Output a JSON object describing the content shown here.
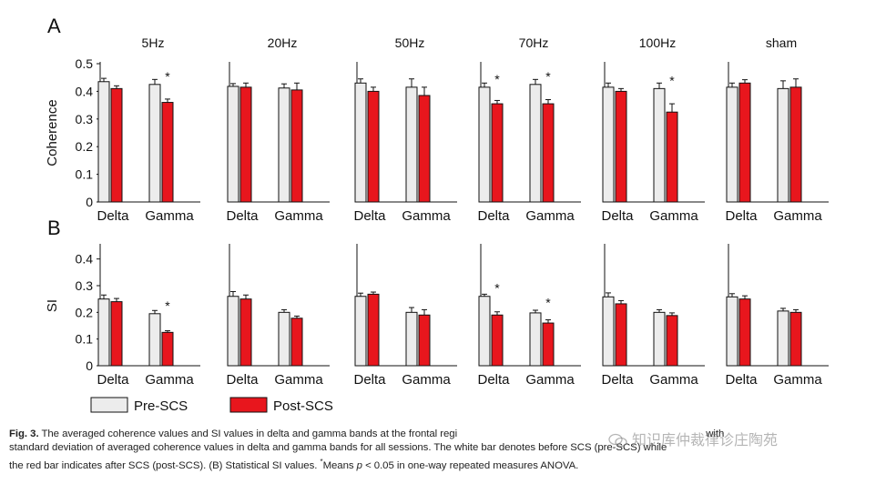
{
  "panel_letters": [
    "A",
    "B"
  ],
  "legend": {
    "pre": "Pre-SCS",
    "post": "Post-SCS"
  },
  "colors": {
    "pre": "#ececec",
    "post": "#e8161d",
    "axis": "#111111"
  },
  "chart_data": [
    {
      "type": "bar",
      "panel": "A",
      "ylabel": "Coherence",
      "ylim": [
        0,
        0.5
      ],
      "yticks": [
        "0",
        "0.1",
        "0.2",
        "0.3",
        "0.4",
        "0.5"
      ],
      "categories": [
        "Delta",
        "Gamma"
      ],
      "groups": [
        {
          "title": "5Hz",
          "pre": [
            0.435,
            0.425
          ],
          "pre_err": [
            0.012,
            0.018
          ],
          "post": [
            0.41,
            0.36
          ],
          "post_err": [
            0.01,
            0.012
          ],
          "sig": [
            false,
            true
          ]
        },
        {
          "title": "20Hz",
          "pre": [
            0.418,
            0.412
          ],
          "pre_err": [
            0.01,
            0.015
          ],
          "post": [
            0.415,
            0.405
          ],
          "post_err": [
            0.015,
            0.025
          ],
          "sig": [
            false,
            false
          ]
        },
        {
          "title": "50Hz",
          "pre": [
            0.43,
            0.415
          ],
          "pre_err": [
            0.015,
            0.03
          ],
          "post": [
            0.4,
            0.385
          ],
          "post_err": [
            0.015,
            0.03
          ],
          "sig": [
            false,
            false
          ]
        },
        {
          "title": "70Hz",
          "pre": [
            0.415,
            0.425
          ],
          "pre_err": [
            0.015,
            0.018
          ],
          "post": [
            0.355,
            0.355
          ],
          "post_err": [
            0.012,
            0.015
          ],
          "sig": [
            true,
            true
          ]
        },
        {
          "title": "100Hz",
          "pre": [
            0.415,
            0.41
          ],
          "pre_err": [
            0.015,
            0.02
          ],
          "post": [
            0.4,
            0.325
          ],
          "post_err": [
            0.01,
            0.03
          ],
          "sig": [
            false,
            true
          ]
        },
        {
          "title": "sham",
          "pre": [
            0.415,
            0.41
          ],
          "pre_err": [
            0.015,
            0.028
          ],
          "post": [
            0.43,
            0.415
          ],
          "post_err": [
            0.012,
            0.03
          ],
          "sig": [
            false,
            false
          ]
        }
      ]
    },
    {
      "type": "bar",
      "panel": "B",
      "ylabel": "SI",
      "ylim": [
        0,
        0.45
      ],
      "yticks": [
        "0",
        "0.1",
        "0.2",
        "0.3",
        "0.4"
      ],
      "categories": [
        "Delta",
        "Gamma"
      ],
      "groups": [
        {
          "title": "",
          "pre": [
            0.25,
            0.195
          ],
          "pre_err": [
            0.015,
            0.012
          ],
          "post": [
            0.24,
            0.125
          ],
          "post_err": [
            0.012,
            0.006
          ],
          "sig": [
            false,
            true
          ]
        },
        {
          "title": "",
          "pre": [
            0.26,
            0.2
          ],
          "pre_err": [
            0.018,
            0.01
          ],
          "post": [
            0.25,
            0.178
          ],
          "post_err": [
            0.015,
            0.008
          ],
          "sig": [
            false,
            false
          ]
        },
        {
          "title": "",
          "pre": [
            0.26,
            0.2
          ],
          "pre_err": [
            0.012,
            0.018
          ],
          "post": [
            0.268,
            0.19
          ],
          "post_err": [
            0.008,
            0.02
          ],
          "sig": [
            false,
            false
          ]
        },
        {
          "title": "",
          "pre": [
            0.26,
            0.198
          ],
          "pre_err": [
            0.008,
            0.01
          ],
          "post": [
            0.19,
            0.16
          ],
          "post_err": [
            0.012,
            0.012
          ],
          "sig": [
            true,
            true
          ]
        },
        {
          "title": "",
          "pre": [
            0.258,
            0.2
          ],
          "pre_err": [
            0.015,
            0.01
          ],
          "post": [
            0.232,
            0.188
          ],
          "post_err": [
            0.012,
            0.01
          ],
          "sig": [
            false,
            false
          ]
        },
        {
          "title": "",
          "pre": [
            0.258,
            0.205
          ],
          "pre_err": [
            0.012,
            0.01
          ],
          "post": [
            0.25,
            0.2
          ],
          "post_err": [
            0.012,
            0.01
          ],
          "sig": [
            false,
            false
          ]
        }
      ]
    }
  ],
  "sig_marker": "*",
  "caption": {
    "label": "Fig. 3.",
    "line1": "The averaged coherence values and SI values in delta and gamma bands at the frontal regi",
    "line1_tail": "with",
    "line2a": "standard deviation of averaged coherence values in delta and gamma bands for all sessions. The white bar denotes before SCS (pre-SCS) while",
    "line3a": "the red bar indicates after SCS (post-SCS). (B) Statistical SI values.",
    "line3_sup": "*",
    "line3b": "Means",
    "line3_p": "p",
    "line3c": "< 0.05 in one-way repeated measures ANOVA."
  },
  "watermark": "知识库仲裁律诊庄陶苑"
}
